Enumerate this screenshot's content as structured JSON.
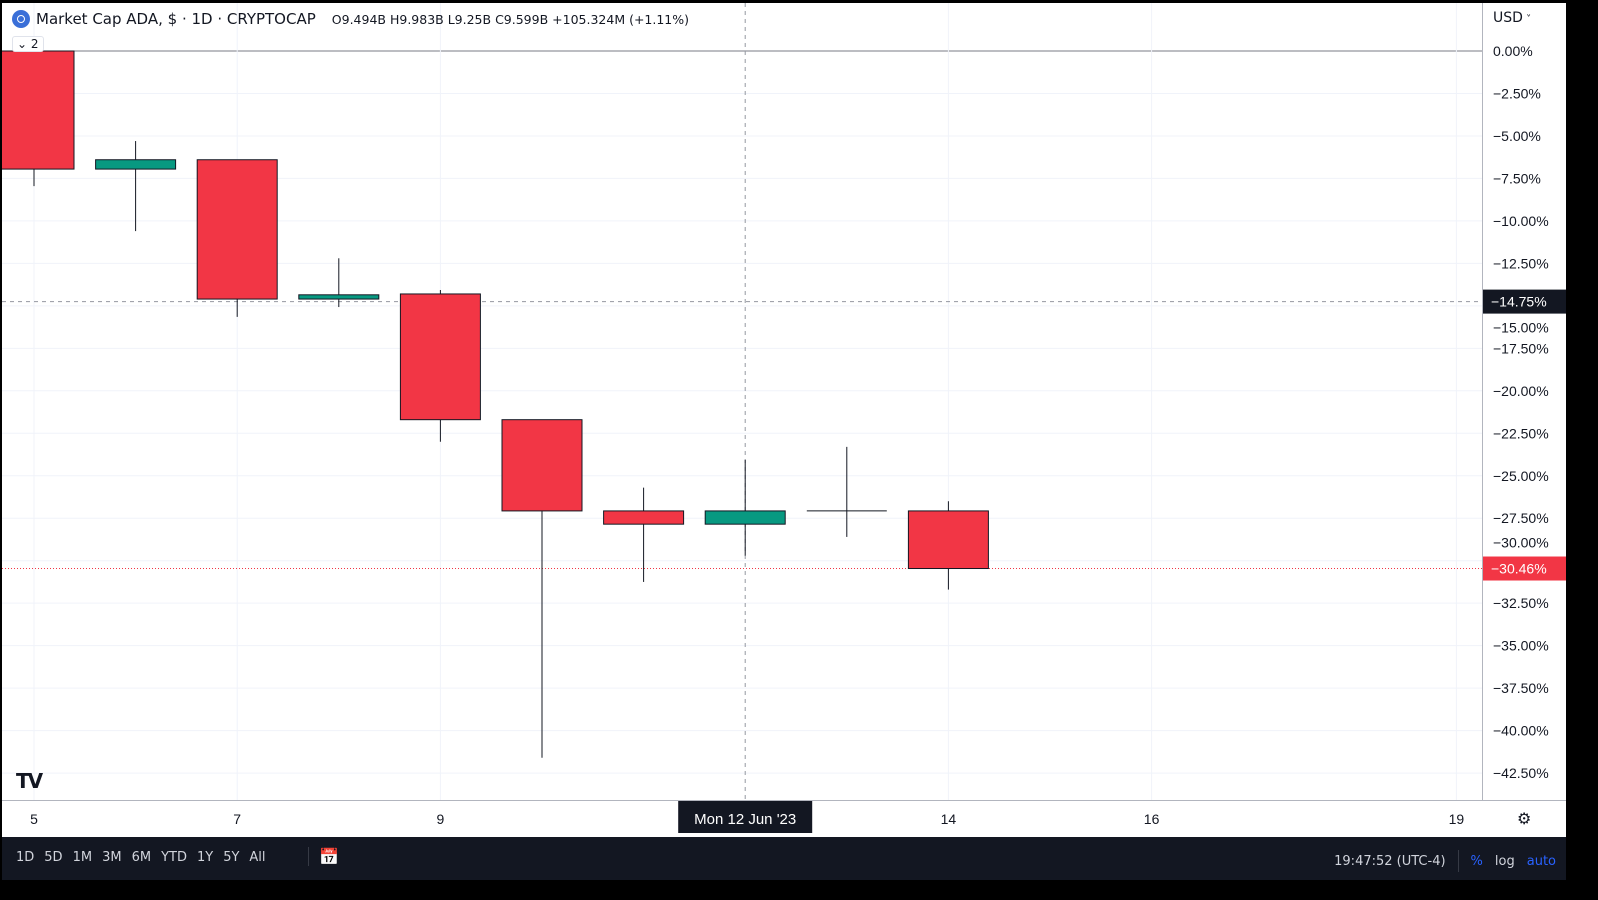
{
  "header": {
    "symbol_title": "Market Cap ADA, $ · 1D · CRYPTOCAP",
    "ohlc": {
      "open": "O9.494B",
      "high": "H9.983B",
      "low": "L9.25B",
      "close": "C9.599B",
      "change": "+105.324M (+1.11%)"
    },
    "collapse_count": "2"
  },
  "price_axis": {
    "currency": "USD"
  },
  "time_axis": {
    "crosshair_label": "Mon 12 Jun '23"
  },
  "bottom_bar": {
    "ranges": [
      "1D",
      "5D",
      "1M",
      "3M",
      "6M",
      "YTD",
      "1Y",
      "5Y",
      "All"
    ],
    "clock": "19:47:52 (UTC-4)",
    "percent": "%",
    "log": "log",
    "auto": "auto"
  },
  "colors": {
    "up": "#089981",
    "down": "#f23645",
    "crosshair_label_bg": "#131722"
  },
  "chart_data": {
    "type": "candlestick",
    "title": "Market Cap ADA, $ · 1D · CRYPTOCAP",
    "y_unit": "%",
    "ylim": [
      -44.4,
      2.8
    ],
    "y_ticks": [
      0,
      -2.5,
      -5,
      -7.5,
      -10,
      -12.5,
      -15,
      -17.5,
      -20,
      -22.5,
      -25,
      -27.5,
      -30,
      -32.5,
      -35,
      -37.5,
      -40,
      -42.5
    ],
    "y_tick_labels": [
      "0.00%",
      "−2.50%",
      "−5.00%",
      "−7.50%",
      "−10.00%",
      "−12.50%",
      "−15.00%",
      "−17.50%",
      "−20.00%",
      "−22.50%",
      "−25.00%",
      "−27.50%",
      "−30.00%",
      "−32.50%",
      "−35.00%",
      "−37.50%",
      "−40.00%",
      "−42.50%"
    ],
    "x_tick_days": [
      5,
      7,
      9,
      14,
      16,
      19
    ],
    "x_tick_labels": [
      "5",
      "7",
      "9",
      "14",
      "16",
      "19"
    ],
    "candles": [
      {
        "day": 5,
        "open": 0,
        "high": 0,
        "low": -7.95,
        "close": -6.95
      },
      {
        "day": 6,
        "open": -6.95,
        "high": -5.3,
        "low": -10.6,
        "close": -6.4
      },
      {
        "day": 7,
        "open": -6.4,
        "high": -6.4,
        "low": -15.65,
        "close": -14.6
      },
      {
        "day": 8,
        "open": -14.6,
        "high": -12.2,
        "low": -15.07,
        "close": -14.35
      },
      {
        "day": 9,
        "open": -14.3,
        "high": -14.07,
        "low": -23.0,
        "close": -21.7
      },
      {
        "day": 10,
        "open": -21.7,
        "high": -21.7,
        "low": -41.6,
        "close": -27.07
      },
      {
        "day": 11,
        "open": -27.07,
        "high": -25.7,
        "low": -31.25,
        "close": -27.85
      },
      {
        "day": 12,
        "open": -27.85,
        "high": -24.07,
        "low": -29.7,
        "close": -27.07
      },
      {
        "day": 13,
        "open": -27.07,
        "high": -23.3,
        "low": -28.6,
        "close": -27.07
      },
      {
        "day": 14,
        "open": -27.07,
        "high": -26.5,
        "low": -31.7,
        "close": -30.46
      }
    ],
    "crosshair": {
      "day": 12,
      "value": -14.75,
      "label": "−14.75%"
    },
    "last_price": {
      "value": -30.46,
      "label": "−30.46%"
    }
  }
}
